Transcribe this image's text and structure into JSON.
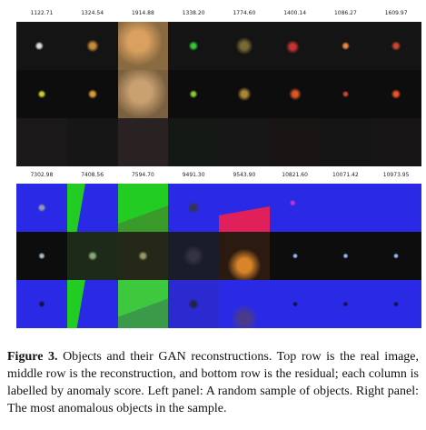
{
  "panels": [
    {
      "labels": [
        "1122.71",
        "1324.54",
        "1914.88",
        "1338.20",
        "1774.60",
        "1400.14",
        "1086.27",
        "1609.97"
      ]
    },
    {
      "labels": [
        "7302.98",
        "7408.56",
        "7594.70",
        "9491.30",
        "9543.90",
        "10821.60",
        "10071.42",
        "10973.95"
      ]
    }
  ],
  "caption": {
    "label": "Figure 3.",
    "text": "Objects and their GAN reconstructions. Top row is the real image, middle row is the reconstruction, and bottom row is the residual; each column is labelled by anomaly score. Left panel: A random sample of objects. Right panel: The most anomalous objects in the sample."
  }
}
